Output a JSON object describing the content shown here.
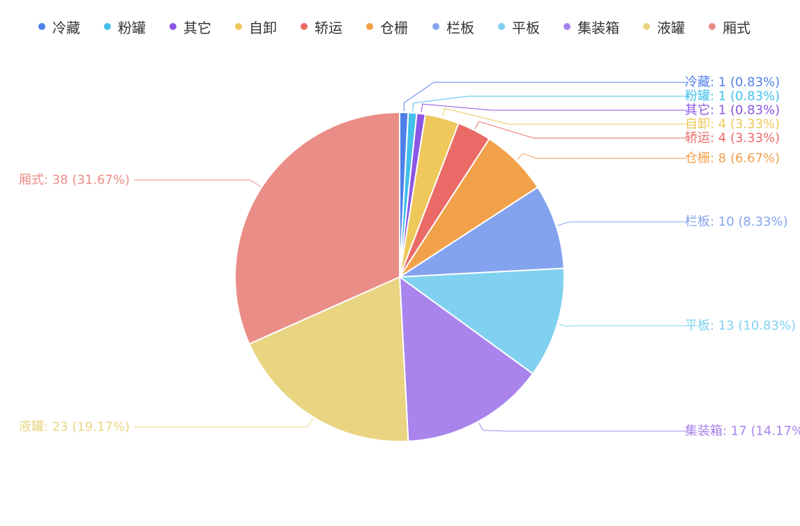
{
  "chart_data": {
    "type": "pie",
    "series": [
      {
        "name": "冷藏",
        "value": 1,
        "percent": "0.83%",
        "color": "#4f7fe8",
        "label": "冷藏: 1 (0.83%)"
      },
      {
        "name": "粉罐",
        "value": 1,
        "percent": "0.83%",
        "color": "#43bfea",
        "label": "粉罐: 1 (0.83%)"
      },
      {
        "name": "其它",
        "value": 1,
        "percent": "0.83%",
        "color": "#8b56e3",
        "label": "其它: 1 (0.83%)"
      },
      {
        "name": "自卸",
        "value": 4,
        "percent": "3.33%",
        "color": "#eec85a",
        "label": "自卸: 4 (3.33%)"
      },
      {
        "name": "轿运",
        "value": 4,
        "percent": "3.33%",
        "color": "#ea6a67",
        "label": "轿运: 4 (3.33%)"
      },
      {
        "name": "仓栅",
        "value": 8,
        "percent": "6.67%",
        "color": "#f0a14a",
        "label": "仓栅: 8 (6.67%)"
      },
      {
        "name": "栏板",
        "value": 10,
        "percent": "8.33%",
        "color": "#84a3ef",
        "label": "栏板: 10 (8.33%)"
      },
      {
        "name": "平板",
        "value": 13,
        "percent": "10.83%",
        "color": "#80d1f0",
        "label": "平板: 13 (10.83%)"
      },
      {
        "name": "集装箱",
        "value": 17,
        "percent": "14.17%",
        "color": "#a884ec",
        "label": "集装箱: 17 (14.17%)"
      },
      {
        "name": "液罐",
        "value": 23,
        "percent": "19.17%",
        "color": "#e9d482",
        "label": "液罐: 23 (19.17%)"
      },
      {
        "name": "厢式",
        "value": 38,
        "percent": "31.67%",
        "color": "#eb8d87",
        "label": "厢式: 38 (31.67%)"
      }
    ],
    "legend_position": "top"
  }
}
